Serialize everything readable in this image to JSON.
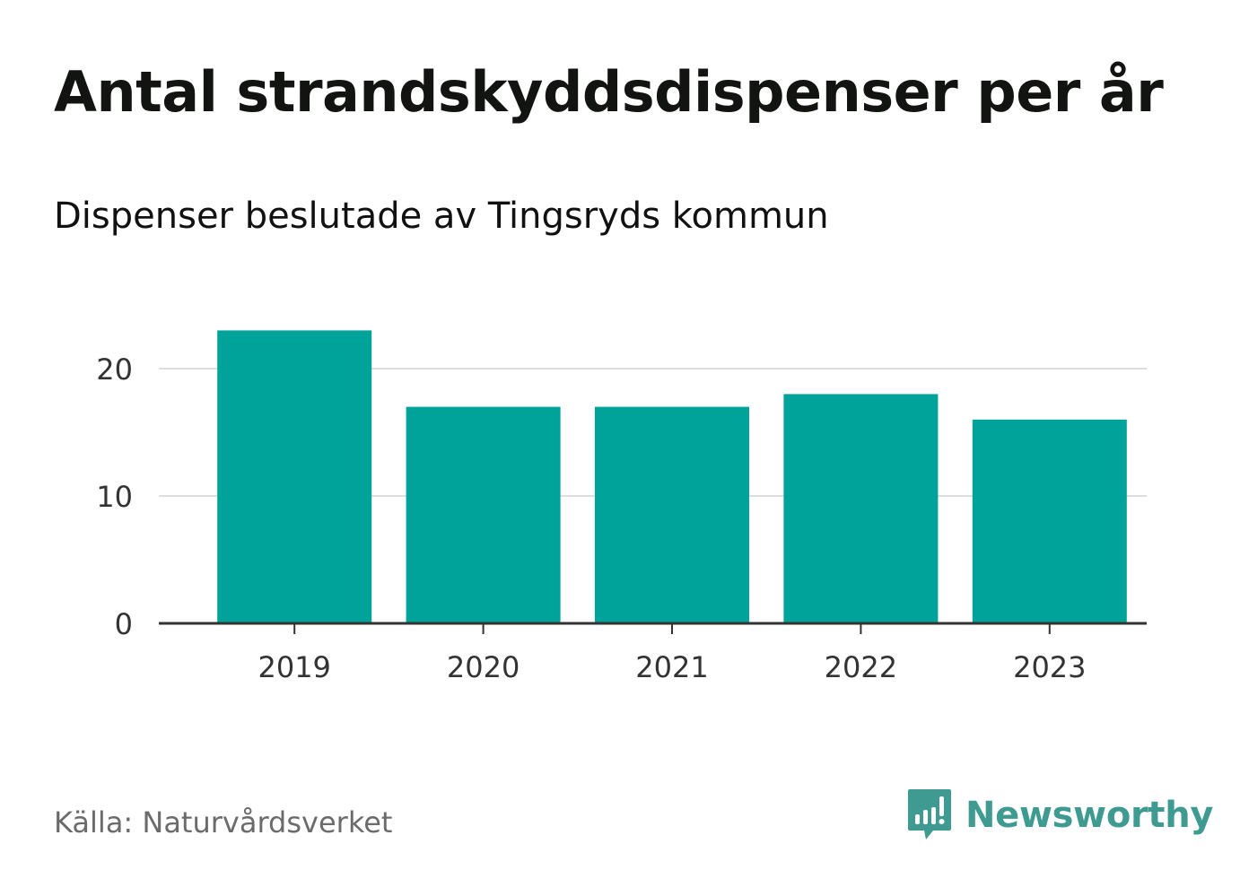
{
  "header": {
    "title": "Antal strandskyddsdispenser per år",
    "subtitle": "Dispenser beslutade av Tingsryds kommun"
  },
  "footer": {
    "source": "Källa: Naturvårdsverket",
    "brand": "Newsworthy"
  },
  "colors": {
    "bar": "#00a39a",
    "grid": "#dddddd",
    "axis": "#333333",
    "tick_text": "#333333",
    "brand": "#3f9b91"
  },
  "chart_data": {
    "type": "bar",
    "title": "Antal strandskyddsdispenser per år",
    "subtitle": "Dispenser beslutade av Tingsryds kommun",
    "categories": [
      "2019",
      "2020",
      "2021",
      "2022",
      "2023"
    ],
    "values": [
      23,
      17,
      17,
      18,
      16
    ],
    "xlabel": "",
    "ylabel": "",
    "ylim": [
      0,
      23
    ],
    "yticks": [
      0,
      10,
      20
    ],
    "grid": true,
    "legend": "none"
  }
}
